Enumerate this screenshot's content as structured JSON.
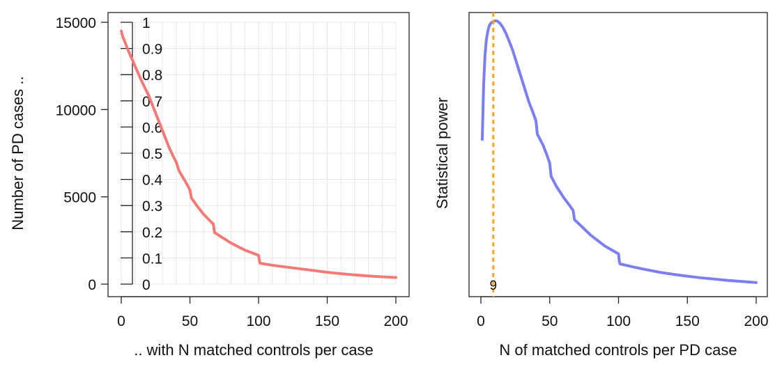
{
  "chart_data": [
    {
      "type": "line",
      "title": "",
      "xlabel": ".. with N matched controls per case",
      "ylabel": "Number of PD cases ..",
      "xlim": [
        0,
        200
      ],
      "ylim": [
        0,
        15000
      ],
      "xticks": [
        0,
        50,
        100,
        150,
        200
      ],
      "yticks": [
        0,
        5000,
        10000,
        15000
      ],
      "secondary_axis": {
        "position": "inside-left",
        "ticks": [
          0,
          0.1,
          0.2,
          0.3,
          0.4,
          0.5,
          0.6,
          0.7,
          0.8,
          0.9,
          1
        ],
        "tick_labels": [
          "0",
          "0.1",
          "0.2",
          "0.3",
          "0.4",
          "0.5",
          "0.6",
          "0.7",
          "0.8",
          "0.9",
          "1"
        ]
      },
      "grid": true,
      "color": "#f47a78",
      "series": [
        {
          "x": [
            0,
            1,
            2,
            5,
            10,
            15,
            20,
            25,
            28,
            30,
            33,
            35,
            38,
            40,
            42,
            45,
            48,
            50,
            51,
            55,
            60,
            65,
            67,
            68,
            70,
            75,
            80,
            85,
            90,
            95,
            100,
            100.5,
            101,
            110,
            120,
            130,
            140,
            150,
            160,
            170,
            180,
            190,
            200
          ],
          "values": [
            14500,
            14200,
            14000,
            13400,
            12500,
            11600,
            10800,
            9800,
            9200,
            8800,
            8200,
            7800,
            7300,
            7000,
            6500,
            6100,
            5700,
            5400,
            4950,
            4500,
            4000,
            3600,
            3450,
            2950,
            2850,
            2600,
            2350,
            2150,
            1950,
            1800,
            1650,
            1400,
            1200,
            1080,
            980,
            880,
            780,
            680,
            600,
            530,
            470,
            420,
            380
          ]
        }
      ]
    },
    {
      "type": "line",
      "title": "",
      "xlabel": "N of matched controls per PD case",
      "ylabel": "Statistical power",
      "xlim": [
        0,
        200
      ],
      "ylim": [
        0,
        1
      ],
      "xticks": [
        0,
        50,
        100,
        150,
        200
      ],
      "yticks": [],
      "grid": false,
      "color": "#7b7ff2",
      "vline": {
        "x": 9,
        "label": "9",
        "color": "#f5a623"
      },
      "series": [
        {
          "x": [
            1,
            2,
            3,
            4,
            5,
            6,
            7,
            8,
            9,
            10,
            11,
            12,
            14,
            16,
            18,
            20,
            23,
            26,
            29,
            32,
            35,
            38,
            40,
            41,
            45,
            48,
            50,
            51,
            55,
            60,
            65,
            67,
            68,
            70,
            75,
            80,
            85,
            90,
            95,
            100,
            100.5,
            101,
            110,
            120,
            130,
            140,
            150,
            160,
            170,
            180,
            190,
            200
          ],
          "values": [
            0.55,
            0.76,
            0.87,
            0.93,
            0.96,
            0.98,
            0.99,
            0.995,
            0.998,
            1.0,
            1.0,
            0.999,
            0.99,
            0.975,
            0.955,
            0.93,
            0.89,
            0.84,
            0.79,
            0.74,
            0.69,
            0.65,
            0.62,
            0.57,
            0.53,
            0.49,
            0.46,
            0.41,
            0.37,
            0.33,
            0.295,
            0.28,
            0.245,
            0.235,
            0.21,
            0.185,
            0.165,
            0.145,
            0.13,
            0.115,
            0.09,
            0.077,
            0.066,
            0.055,
            0.045,
            0.037,
            0.03,
            0.024,
            0.019,
            0.014,
            0.01,
            0.006
          ]
        }
      ]
    }
  ]
}
